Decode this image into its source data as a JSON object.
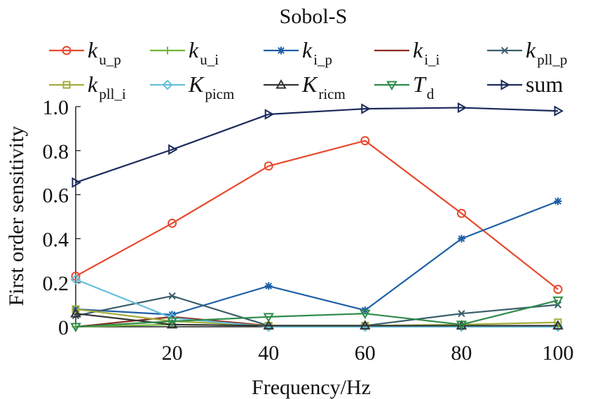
{
  "chart_data": {
    "type": "line",
    "title": "Sobol-S",
    "xlabel": "Frequency/Hz",
    "ylabel": "First order sensitivity",
    "xlim": [
      0,
      100
    ],
    "ylim": [
      0,
      1.0
    ],
    "x": [
      0,
      20,
      40,
      60,
      80,
      100
    ],
    "xticks": [
      20,
      40,
      60,
      80,
      100
    ],
    "xtick_labels": [
      "20",
      "40",
      "60",
      "80",
      "100"
    ],
    "yticks": [
      0,
      0.2,
      0.4,
      0.6,
      0.8,
      1.0
    ],
    "ytick_labels": [
      "0",
      "0.2",
      "0.4",
      "0.6",
      "0.8",
      "1.0"
    ],
    "grid": false,
    "legend_position": "top",
    "series": [
      {
        "name": "k",
        "sub": "u_p",
        "italic": true,
        "color": "#e8482e",
        "marker": "circle",
        "values": [
          0.23,
          0.47,
          0.73,
          0.845,
          0.515,
          0.17
        ]
      },
      {
        "name": "k",
        "sub": "u_i",
        "italic": true,
        "color": "#72b43a",
        "marker": "plus",
        "values": [
          0.0,
          0.01,
          0.005,
          0.005,
          0.005,
          0.0
        ]
      },
      {
        "name": "k",
        "sub": "i_p",
        "italic": true,
        "color": "#1f5fa6",
        "marker": "asterisk",
        "values": [
          0.08,
          0.055,
          0.185,
          0.075,
          0.4,
          0.57
        ]
      },
      {
        "name": "k",
        "sub": "i_i",
        "italic": true,
        "color": "#8b2a1e",
        "marker": "none",
        "values": [
          0.0,
          0.045,
          0.005,
          0.005,
          0.005,
          0.0
        ]
      },
      {
        "name": "k",
        "sub": "pll_p",
        "italic": true,
        "color": "#3b5e6b",
        "marker": "x",
        "values": [
          0.05,
          0.14,
          0.005,
          0.005,
          0.06,
          0.1
        ]
      },
      {
        "name": "k",
        "sub": "pll_i",
        "italic": true,
        "color": "#a3ad3c",
        "marker": "square",
        "values": [
          0.08,
          0.025,
          0.005,
          0.005,
          0.01,
          0.02
        ]
      },
      {
        "name": "K",
        "sub": "picm",
        "italic": true,
        "color": "#66c0dc",
        "marker": "diamond",
        "values": [
          0.215,
          0.04,
          0.0,
          0.0,
          0.0,
          0.0
        ]
      },
      {
        "name": "K",
        "sub": "ricm",
        "italic": true,
        "color": "#333333",
        "marker": "triangle-up",
        "values": [
          0.06,
          0.01,
          0.005,
          0.005,
          0.005,
          0.005
        ]
      },
      {
        "name": "T",
        "sub": "d",
        "italic": true,
        "color": "#2e8b4a",
        "marker": "triangle-down",
        "values": [
          0.0,
          0.025,
          0.045,
          0.06,
          0.01,
          0.12
        ]
      },
      {
        "name": "sum",
        "sub": "",
        "italic": false,
        "color": "#1c2a5c",
        "marker": "triangle-right",
        "values": [
          0.655,
          0.805,
          0.965,
          0.99,
          0.995,
          0.98
        ]
      }
    ]
  }
}
